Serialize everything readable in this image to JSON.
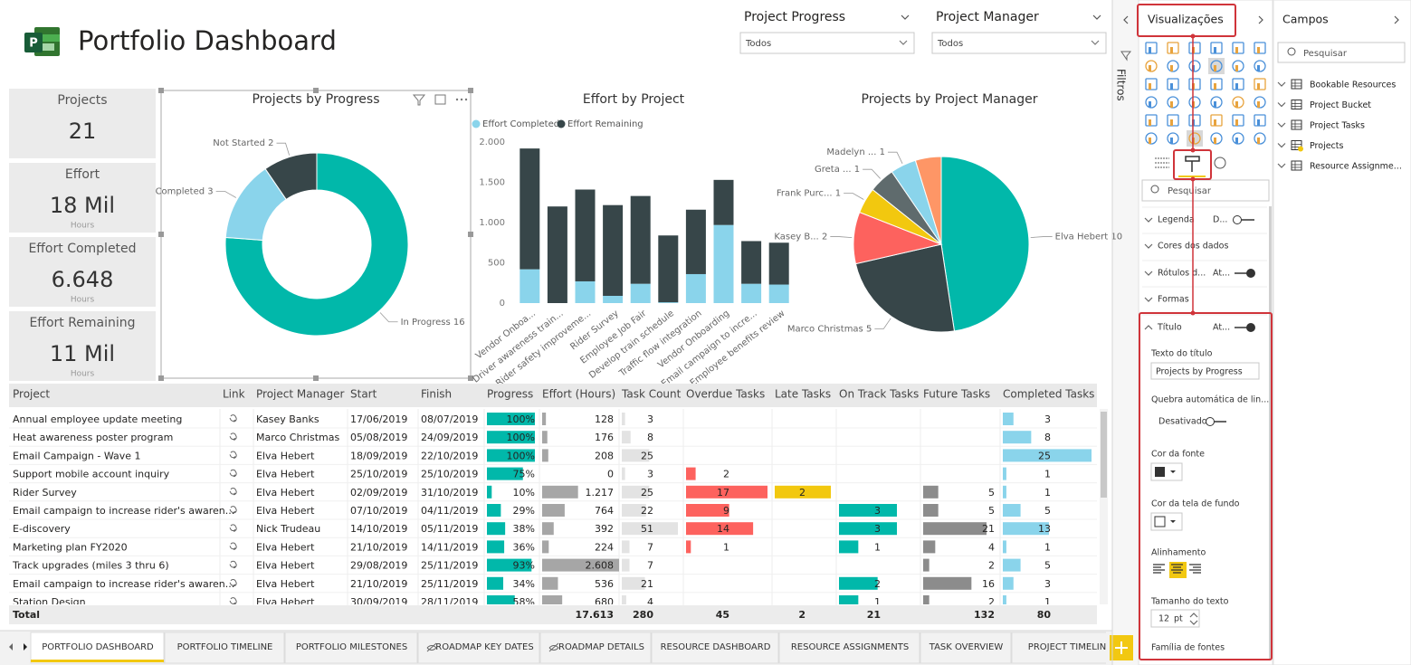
{
  "header": {
    "title": "Portfolio Dashboard"
  },
  "slicers": [
    {
      "label": "Project Progress",
      "value": "Todos"
    },
    {
      "label": "Project Manager",
      "value": "Todos"
    }
  ],
  "cards": [
    {
      "title": "Projects",
      "value": 21
    },
    {
      "title": "Effort",
      "value": "18 Mil",
      "unit": "Hours"
    },
    {
      "title": "Effort Completed",
      "value": "6.648",
      "unit": "Hours"
    },
    {
      "title": "Effort Remaining",
      "value": "11 Mil",
      "unit": "Hours"
    }
  ],
  "chart_data": [
    {
      "type": "donut",
      "title": "Projects by Progress",
      "categories": [
        "In Progress",
        "Completed",
        "Not Started"
      ],
      "values": [
        16,
        3,
        2
      ],
      "colors": [
        "#01b8aa",
        "#8ad4eb",
        "#374649"
      ]
    },
    {
      "type": "stacked_bar",
      "title": "Effort by Project",
      "categories": [
        "Vendor Onboa...",
        "Driver awareness train...",
        "Rider safety improveme...",
        "Rider Survey",
        "Employee Job Fair",
        "Develop train schedule",
        "Traffic flow integration",
        "Vendor Onboarding",
        "Email campaign to incre...",
        "Employee benefits review"
      ],
      "series": [
        {
          "name": "Effort Completed",
          "color": "#8ad4eb",
          "values": [
            420,
            0,
            270,
            90,
            240,
            10,
            360,
            970,
            240,
            230
          ]
        },
        {
          "name": "Effort Remaining",
          "color": "#374649",
          "values": [
            1500,
            1200,
            1140,
            1127,
            1090,
            830,
            800,
            560,
            530,
            520
          ]
        }
      ],
      "ylim": [
        0,
        2000
      ],
      "yticks": [
        0,
        500,
        {
          "value": 1000,
          "label": "1.000"
        },
        {
          "value": 1500,
          "label": "1.500"
        },
        {
          "value": 2000,
          "label": "2.000"
        }
      ]
    },
    {
      "type": "pie",
      "title": "Projects by Project Manager",
      "categories": [
        "Elva Hebert",
        "Marco Christmas",
        "Kasey B...",
        "Frank Purc...",
        "Greta ...",
        "Madelyn ...",
        null
      ],
      "values": [
        10,
        5,
        2,
        1,
        1,
        1,
        1
      ],
      "colors": [
        "#01b8aa",
        "#374649",
        "#fd625e",
        "#f2c80f",
        "#5f6b6d",
        "#8ad4eb",
        "#fe9666"
      ]
    }
  ],
  "table": {
    "columns": [
      "Project",
      "Link",
      "Project Manager",
      "Start",
      "Finish",
      "Progress",
      "Effort (Hours)",
      "Task Count",
      "Overdue Tasks",
      "Late Tasks",
      "On Track Tasks",
      "Future Tasks",
      "Completed Tasks"
    ],
    "rows": [
      [
        "Annual employee update meeting",
        null,
        "Kasey Banks",
        "17/06/2019",
        "08/07/2019",
        {
          "value": 100,
          "label": "100%"
        },
        128,
        3,
        null,
        null,
        null,
        null,
        3
      ],
      [
        "Heat awareness poster program",
        null,
        "Marco Christmas",
        "05/08/2019",
        "24/09/2019",
        {
          "value": 100,
          "label": "100%"
        },
        176,
        8,
        null,
        null,
        null,
        null,
        8
      ],
      [
        "Email Campaign - Wave 1",
        null,
        "Elva Hebert",
        "18/09/2019",
        "22/10/2019",
        {
          "value": 100,
          "label": "100%"
        },
        208,
        25,
        null,
        null,
        null,
        null,
        25
      ],
      [
        "Support mobile account inquiry",
        null,
        "Elva Hebert",
        "25/10/2019",
        "25/10/2019",
        {
          "value": 75,
          "label": "75%"
        },
        0,
        3,
        2,
        null,
        null,
        null,
        1
      ],
      [
        "Rider Survey",
        null,
        "Elva Hebert",
        "02/09/2019",
        "31/10/2019",
        {
          "value": 10,
          "label": "10%"
        },
        {
          "value": 1217,
          "label": "1.217"
        },
        25,
        17,
        2,
        null,
        5,
        1
      ],
      [
        "Email campaign to increase rider's awaren...",
        null,
        "Elva Hebert",
        "07/10/2019",
        "04/11/2019",
        {
          "value": 29,
          "label": "29%"
        },
        764,
        22,
        9,
        null,
        3,
        5,
        5
      ],
      [
        "E-discovery",
        null,
        "Nick Trudeau",
        "14/10/2019",
        "05/11/2019",
        {
          "value": 38,
          "label": "38%"
        },
        392,
        51,
        14,
        null,
        3,
        21,
        13
      ],
      [
        "Marketing plan FY2020",
        null,
        "Elva Hebert",
        "21/10/2019",
        "14/11/2019",
        {
          "value": 36,
          "label": "36%"
        },
        224,
        7,
        1,
        null,
        1,
        4,
        1
      ],
      [
        "Track upgrades (miles 3 thru 6)",
        null,
        "Elva Hebert",
        "29/08/2019",
        "25/11/2019",
        {
          "value": 93,
          "label": "93%"
        },
        {
          "value": 2608,
          "label": "2.608"
        },
        7,
        null,
        null,
        null,
        2,
        5
      ],
      [
        "Email campaign to increase rider's awaren...",
        null,
        "Elva Hebert",
        "21/10/2019",
        "25/11/2019",
        {
          "value": 34,
          "label": "34%"
        },
        536,
        21,
        null,
        null,
        2,
        16,
        3
      ],
      [
        "Station Design",
        null,
        "Elva Hebert",
        "30/09/2019",
        "28/11/2019",
        {
          "value": 58,
          "label": "58%"
        },
        680,
        4,
        null,
        null,
        1,
        2,
        1
      ]
    ],
    "total": [
      "Total",
      null,
      null,
      null,
      null,
      null,
      {
        "value": 17613,
        "label": "17.613"
      },
      280,
      45,
      2,
      21,
      132,
      80
    ]
  },
  "tabs": [
    "PORTFOLIO DASHBOARD",
    "PORTFOLIO TIMELINE",
    "PORTFOLIO MILESTONES",
    "ROADMAP KEY DATES",
    "ROADMAP DETAILS",
    "RESOURCE DASHBOARD",
    "RESOURCE ASSIGNMENTS",
    "TASK OVERVIEW",
    "PROJECT TIMELIN"
  ],
  "filters_pane": {
    "title": "Filtros"
  },
  "visualizations_pane": {
    "title": "Visualizações",
    "search": "Pesquisar",
    "sections": [
      {
        "label": "Legenda",
        "state": "D..."
      },
      {
        "label": "Cores dos dados"
      },
      {
        "label": "Rótulos d...",
        "state": "At..."
      },
      {
        "label": "Formas"
      },
      {
        "label": "Título",
        "state": "At..."
      }
    ],
    "title_options": {
      "text_label": "Texto do título",
      "text_value": "Projects by Progress",
      "wrap_label": "Quebra automática de lin...",
      "wrap_state": "Desativado",
      "font_color_label": "Cor da fonte",
      "background_label": "Cor da tela de fundo",
      "alignment_label": "Alinhamento",
      "text_size_label": "Tamanho do texto",
      "text_size": 12,
      "text_size_unit": "pt",
      "font_family_label": "Família de fontes"
    }
  },
  "fields_pane": {
    "title": "Campos",
    "search": "Pesquisar",
    "tables": [
      "Bookable Resources",
      "Project Bucket",
      "Project Tasks",
      "Projects",
      "Resource Assignme..."
    ]
  }
}
